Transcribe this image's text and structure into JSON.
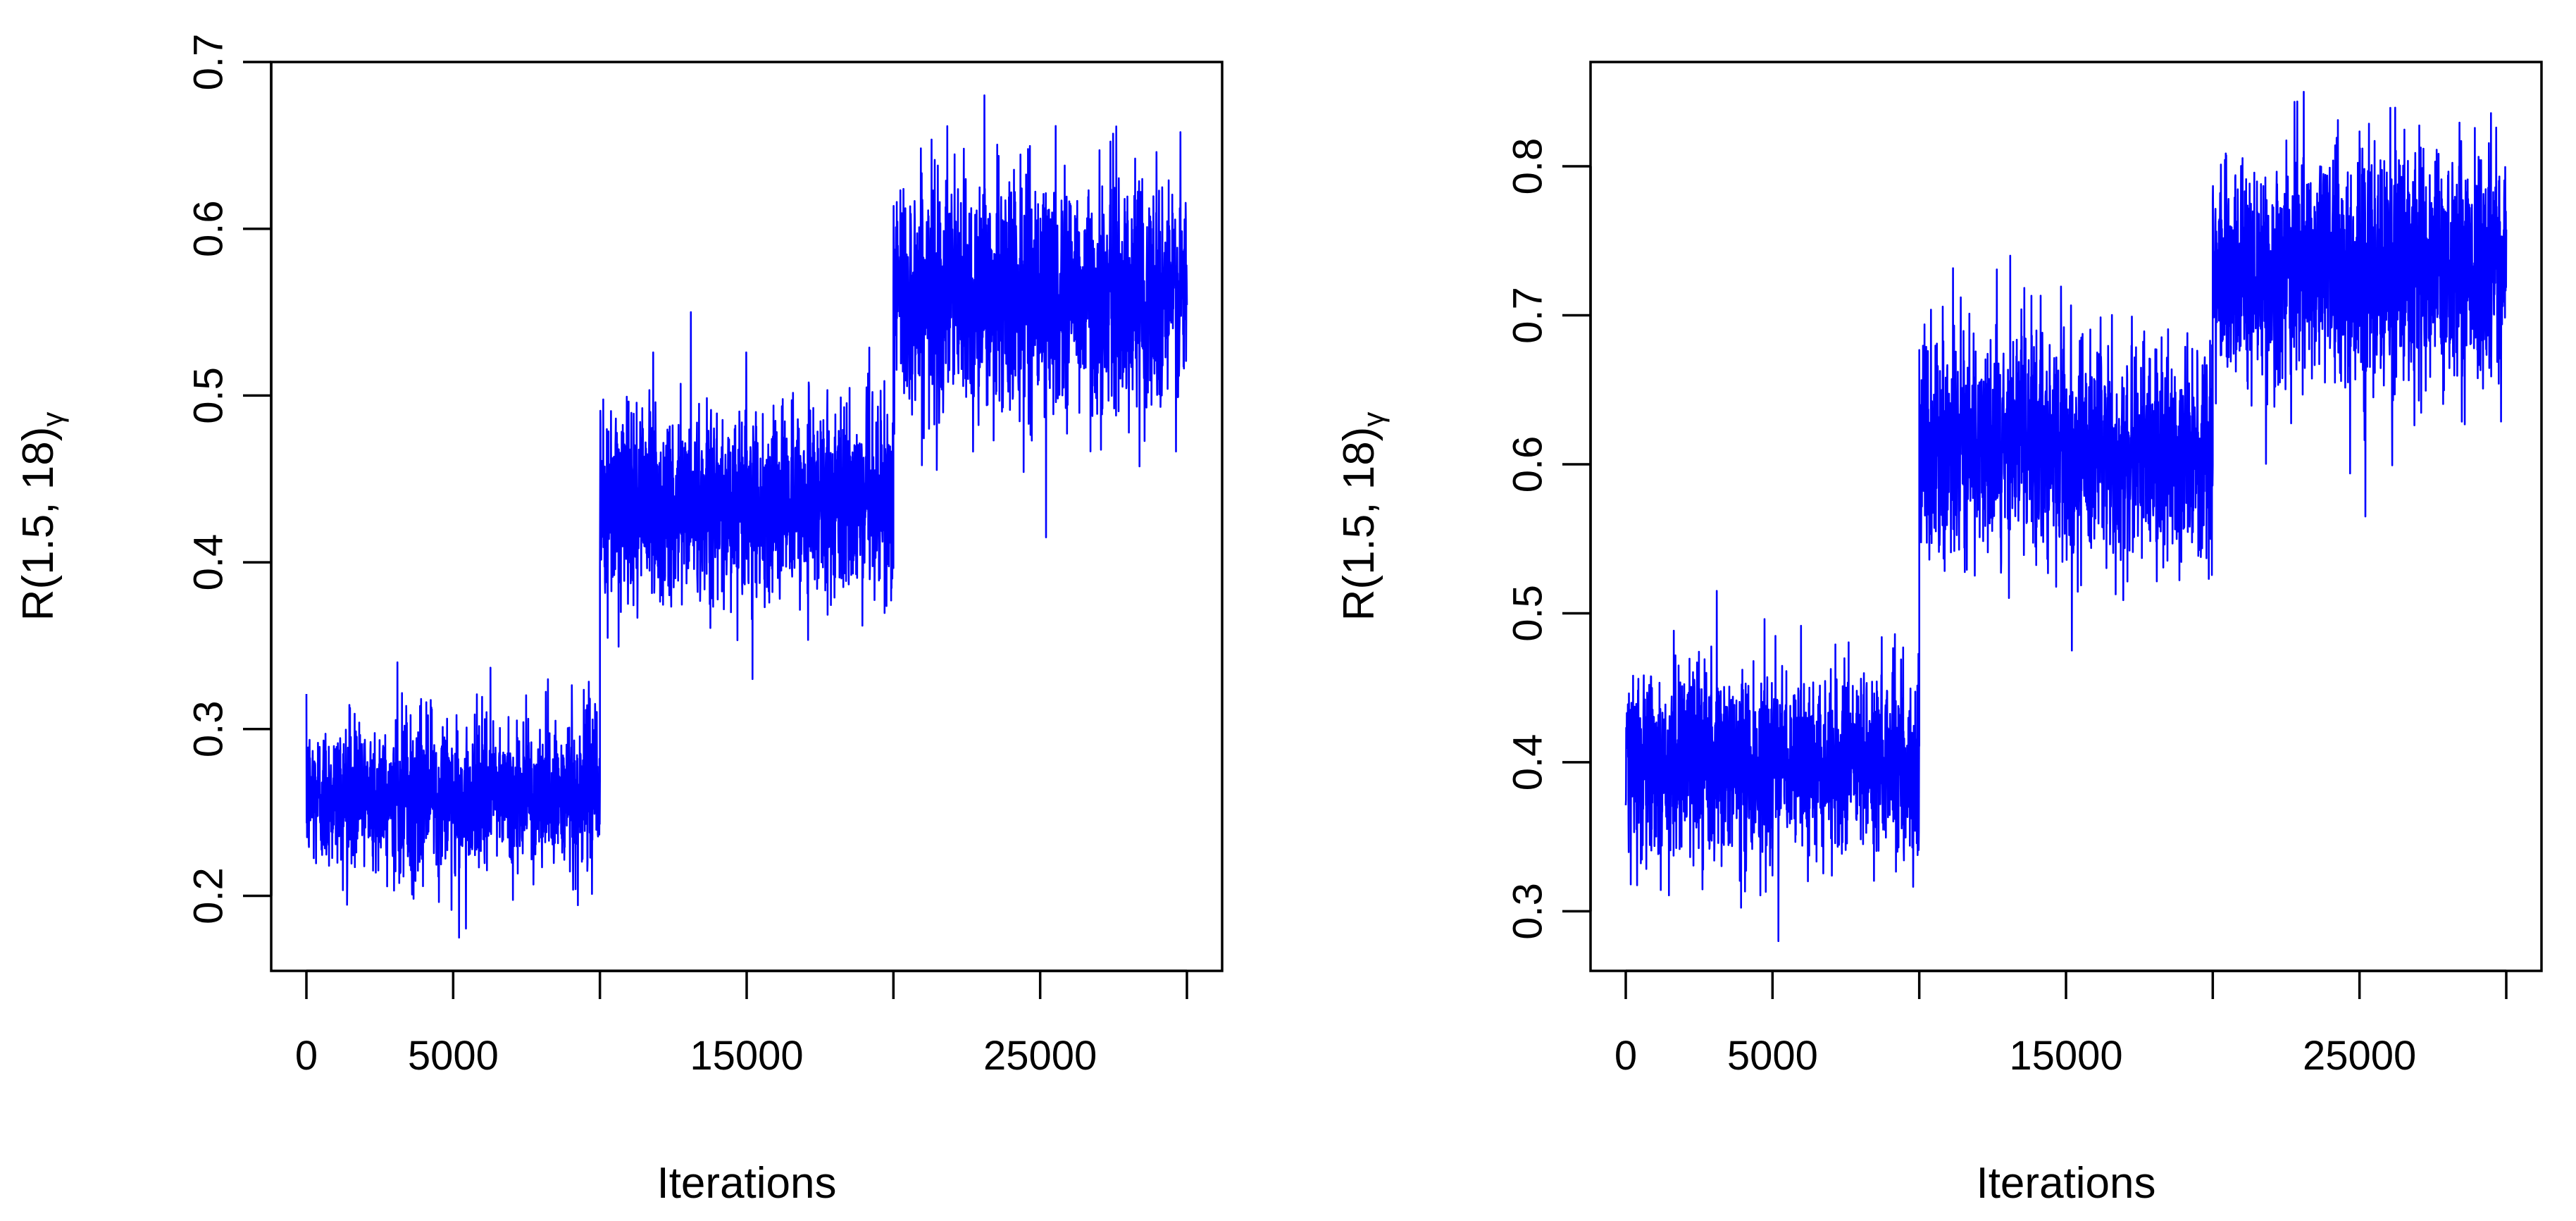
{
  "figure": {
    "background": "#ffffff",
    "trace_color": "#0000ff",
    "axis_color": "#000000"
  },
  "chart_data": [
    {
      "type": "line",
      "title": "",
      "xlabel": "Iterations",
      "ylabel_main": "R(1.5, 18)",
      "ylabel_sub": "γ",
      "xlim": [
        -1200,
        31200
      ],
      "ylim": [
        0.155,
        0.7
      ],
      "x_ticks": [
        0,
        5000,
        10000,
        15000,
        20000,
        25000,
        30000
      ],
      "x_tick_labels": [
        "0",
        "5000",
        "",
        "15000",
        "",
        "25000",
        ""
      ],
      "y_ticks": [
        0.2,
        0.3,
        0.4,
        0.5,
        0.6,
        0.7
      ],
      "y_tick_labels": [
        "0.2",
        "0.3",
        "0.4",
        "0.5",
        "0.6",
        "0.7"
      ],
      "grid": false,
      "legend": "none",
      "series": [
        {
          "segments": [
            {
              "x_start": 0,
              "x_end": 10000,
              "level": 0.26,
              "low": 0.175,
              "high": 0.34
            },
            {
              "x_start": 10000,
              "x_end": 20000,
              "level": 0.435,
              "low": 0.33,
              "high": 0.55
            },
            {
              "x_start": 20000,
              "x_end": 30000,
              "level": 0.56,
              "low": 0.415,
              "high": 0.68
            }
          ]
        }
      ]
    },
    {
      "type": "line",
      "title": "",
      "xlabel": "Iterations",
      "ylabel_main": "R(1.5, 18)",
      "ylabel_sub": "γ",
      "xlim": [
        -1200,
        31200
      ],
      "ylim": [
        0.26,
        0.87
      ],
      "x_ticks": [
        0,
        5000,
        10000,
        15000,
        20000,
        25000,
        30000
      ],
      "x_tick_labels": [
        "0",
        "5000",
        "",
        "15000",
        "",
        "25000",
        ""
      ],
      "y_ticks": [
        0.3,
        0.4,
        0.5,
        0.6,
        0.7,
        0.8
      ],
      "y_tick_labels": [
        "0.3",
        "0.4",
        "0.5",
        "0.6",
        "0.7",
        "0.8"
      ],
      "grid": false,
      "legend": "none",
      "series": [
        {
          "segments": [
            {
              "x_start": 0,
              "x_end": 10000,
              "level": 0.4,
              "low": 0.28,
              "high": 0.515
            },
            {
              "x_start": 10000,
              "x_end": 20000,
              "level": 0.61,
              "low": 0.475,
              "high": 0.74
            },
            {
              "x_start": 20000,
              "x_end": 30000,
              "level": 0.73,
              "low": 0.565,
              "high": 0.85
            }
          ]
        }
      ]
    }
  ]
}
